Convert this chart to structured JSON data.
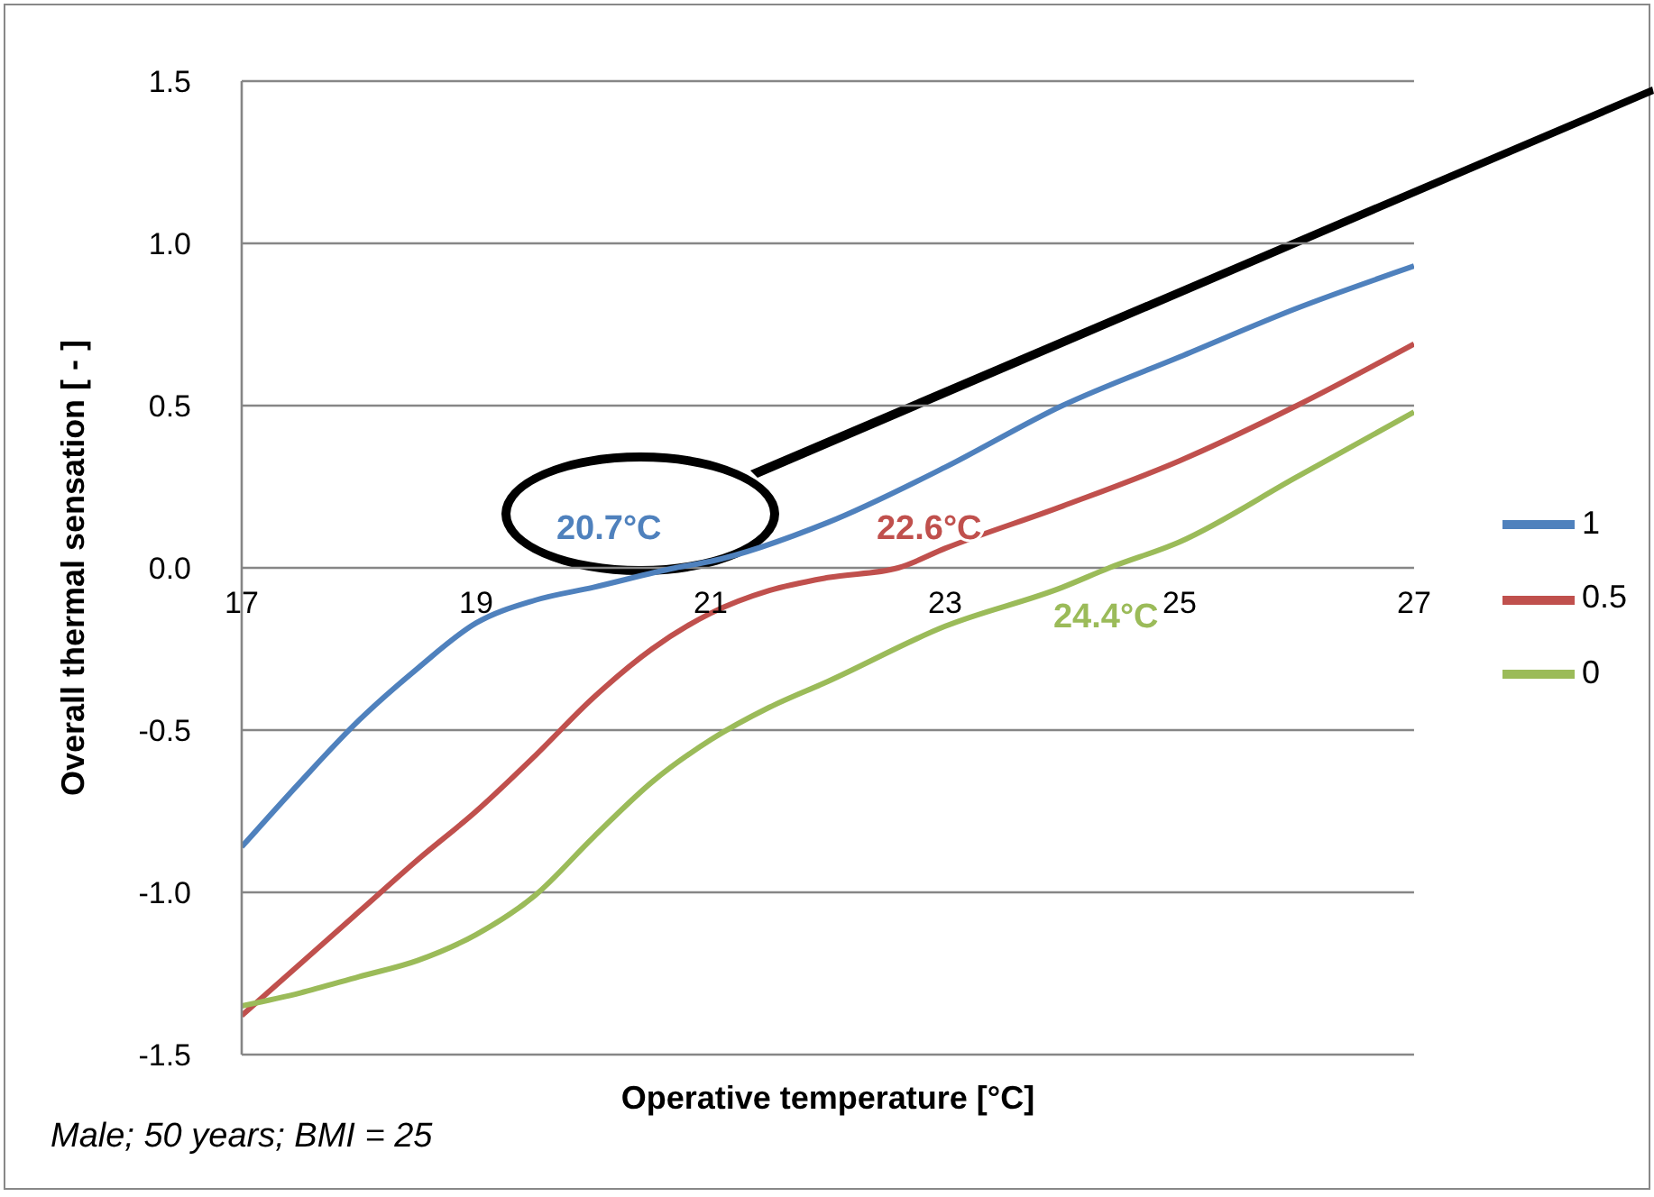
{
  "chart_data": {
    "type": "line",
    "xlabel": "Operative temperature [°C]",
    "ylabel": "Overall thermal sensation [ - ]",
    "x": [
      17,
      17.5,
      18,
      18.5,
      19,
      19.5,
      20,
      20.7,
      21,
      22,
      23,
      24,
      25,
      26,
      27
    ],
    "series": [
      {
        "name": "1",
        "color": "#4f81bd",
        "values": [
          -0.86,
          -0.66,
          -0.47,
          -0.31,
          -0.17,
          -0.1,
          -0.06,
          0,
          0.02,
          0.14,
          0.31,
          0.5,
          0.65,
          0.8,
          0.93
        ]
      },
      {
        "name": "0.5",
        "color": "#c0504d",
        "x": [
          17,
          17.5,
          18,
          18.5,
          19,
          19.5,
          20,
          20.5,
          21,
          21.5,
          22,
          22.6,
          23,
          24,
          25,
          26,
          27
        ],
        "values": [
          -1.38,
          -1.22,
          -1.06,
          -0.9,
          -0.75,
          -0.58,
          -0.4,
          -0.25,
          -0.14,
          -0.07,
          -0.03,
          0,
          0.06,
          0.19,
          0.33,
          0.5,
          0.69
        ]
      },
      {
        "name": "0",
        "color": "#9bbb59",
        "x": [
          17,
          17.5,
          18,
          18.5,
          19,
          19.5,
          20,
          20.5,
          21,
          21.5,
          22,
          23,
          24,
          24.4,
          25,
          26,
          27
        ],
        "values": [
          -1.35,
          -1.31,
          -1.26,
          -1.21,
          -1.13,
          -1.01,
          -0.83,
          -0.66,
          -0.53,
          -0.43,
          -0.35,
          -0.18,
          -0.06,
          0,
          0.08,
          0.28,
          0.48
        ]
      }
    ],
    "xlim": [
      17,
      27
    ],
    "xticks": [
      17,
      19,
      21,
      23,
      25,
      27
    ],
    "ylim": [
      -1.5,
      1.5
    ],
    "yticks": [
      -1.5,
      {
        "value": -1,
        "label": "-1.0"
      },
      -0.5,
      {
        "value": 0,
        "label": "0.0"
      },
      0.5,
      {
        "value": 1,
        "label": "1.0"
      },
      1.5
    ],
    "grid": "y",
    "legend": "right",
    "marker": "none",
    "line_style": "solid",
    "annotations": [
      {
        "text": "20.7°C",
        "x": 20.7,
        "y": 0
      },
      {
        "text": "22.6°C",
        "x": 22.6,
        "y": 0
      },
      {
        "text": "24.4°C",
        "x": 24.4,
        "y": 0
      },
      "Male; 50 years; BMI = 25"
    ]
  }
}
